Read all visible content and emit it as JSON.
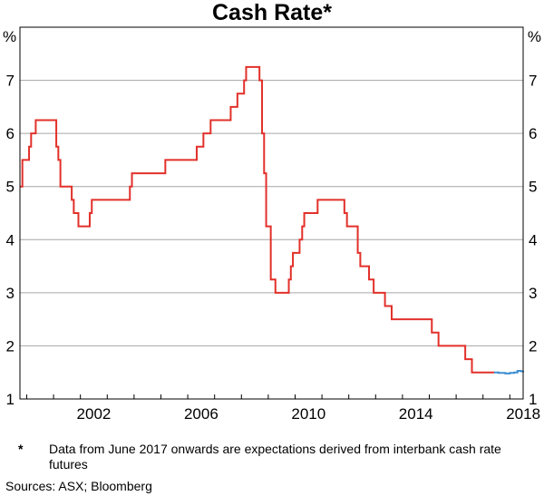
{
  "chart_data": {
    "type": "line",
    "title": "Cash Rate*",
    "y_unit": "%",
    "ylim": [
      1,
      8
    ],
    "y_ticks": [
      1,
      2,
      3,
      4,
      5,
      6,
      7
    ],
    "xlim": [
      "1999-10-01",
      "2018-07-01"
    ],
    "x_ticks": [
      "2002",
      "2006",
      "2010",
      "2014",
      "2018"
    ],
    "grid": true,
    "series": [
      {
        "color": "#e2302a",
        "points": [
          [
            "1999-10-01",
            5.0
          ],
          [
            "1999-11-03",
            5.5
          ],
          [
            "2000-02-02",
            5.75
          ],
          [
            "2000-03-01",
            6.0
          ],
          [
            "2000-05-03",
            6.25
          ],
          [
            "2000-08-02",
            6.25
          ],
          [
            "2001-02-07",
            5.75
          ],
          [
            "2001-03-07",
            5.5
          ],
          [
            "2001-04-04",
            5.0
          ],
          [
            "2001-09-05",
            4.75
          ],
          [
            "2001-10-03",
            4.5
          ],
          [
            "2001-12-05",
            4.25
          ],
          [
            "2002-05-08",
            4.5
          ],
          [
            "2002-06-05",
            4.75
          ],
          [
            "2003-11-05",
            5.0
          ],
          [
            "2003-12-03",
            5.25
          ],
          [
            "2005-03-02",
            5.5
          ],
          [
            "2006-05-03",
            5.75
          ],
          [
            "2006-08-02",
            6.0
          ],
          [
            "2006-11-08",
            6.25
          ],
          [
            "2007-08-08",
            6.5
          ],
          [
            "2007-11-07",
            6.75
          ],
          [
            "2008-02-06",
            7.0
          ],
          [
            "2008-03-05",
            7.25
          ],
          [
            "2008-09-03",
            7.0
          ],
          [
            "2008-10-08",
            6.0
          ],
          [
            "2008-11-05",
            5.25
          ],
          [
            "2008-12-03",
            4.25
          ],
          [
            "2009-02-04",
            3.25
          ],
          [
            "2009-04-08",
            3.0
          ],
          [
            "2009-10-07",
            3.25
          ],
          [
            "2009-11-04",
            3.5
          ],
          [
            "2009-12-02",
            3.75
          ],
          [
            "2010-03-03",
            4.0
          ],
          [
            "2010-04-07",
            4.25
          ],
          [
            "2010-05-05",
            4.5
          ],
          [
            "2010-11-03",
            4.75
          ],
          [
            "2011-11-02",
            4.5
          ],
          [
            "2011-12-07",
            4.25
          ],
          [
            "2012-05-02",
            3.75
          ],
          [
            "2012-06-06",
            3.5
          ],
          [
            "2012-10-03",
            3.25
          ],
          [
            "2012-12-05",
            3.0
          ],
          [
            "2013-05-08",
            2.75
          ],
          [
            "2013-08-07",
            2.5
          ],
          [
            "2015-02-04",
            2.25
          ],
          [
            "2015-05-06",
            2.0
          ],
          [
            "2016-05-04",
            1.75
          ],
          [
            "2016-08-03",
            1.5
          ],
          [
            "2017-06-01",
            1.5
          ]
        ]
      },
      {
        "color": "#3f8fd2",
        "points": [
          [
            "2017-06-01",
            1.5
          ],
          [
            "2017-08-01",
            1.49
          ],
          [
            "2017-11-01",
            1.48
          ],
          [
            "2018-01-01",
            1.49
          ],
          [
            "2018-03-01",
            1.5
          ],
          [
            "2018-04-15",
            1.53
          ],
          [
            "2018-06-01",
            1.52
          ],
          [
            "2018-07-01",
            1.53
          ]
        ]
      }
    ]
  },
  "footnote": {
    "marker": "*",
    "text": "Data from June 2017 onwards are expectations derived from interbank cash rate futures"
  },
  "sources": "Sources: ASX; Bloomberg"
}
